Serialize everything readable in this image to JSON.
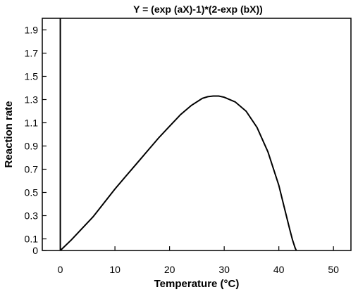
{
  "chart_data": {
    "type": "line",
    "title": "Y = (exp (aX)-1)*(2-exp (bX))",
    "xlabel": "Temperature (°C)",
    "ylabel": "Reaction rate",
    "xlim": [
      -3.3,
      53.2
    ],
    "ylim": [
      0,
      2.0
    ],
    "x_ticks": [
      0,
      10,
      20,
      30,
      40,
      50
    ],
    "y_ticks": [
      0,
      0.1,
      0.3,
      0.5,
      0.7,
      0.9,
      1.1,
      1.3,
      1.5,
      1.7,
      1.9
    ],
    "y_tick_labels": [
      "0",
      "0.1",
      "0.3",
      "0.5",
      "0.7",
      "0.9",
      "1.1",
      "1.3",
      "1.5",
      "1.7",
      "1.9"
    ],
    "grid": false,
    "reference_line_x": 0,
    "series": [
      {
        "x": [
          0,
          2,
          4,
          6,
          8,
          10,
          12,
          14,
          16,
          18,
          20,
          22,
          24,
          26,
          27,
          28,
          29,
          30,
          32,
          34,
          36,
          38,
          40,
          41,
          42,
          42.5,
          43,
          43.2
        ],
        "y": [
          0,
          0.09,
          0.19,
          0.29,
          0.41,
          0.53,
          0.64,
          0.75,
          0.86,
          0.97,
          1.07,
          1.17,
          1.25,
          1.31,
          1.325,
          1.33,
          1.33,
          1.32,
          1.28,
          1.2,
          1.06,
          0.85,
          0.56,
          0.37,
          0.18,
          0.09,
          0.02,
          0
        ]
      }
    ]
  }
}
